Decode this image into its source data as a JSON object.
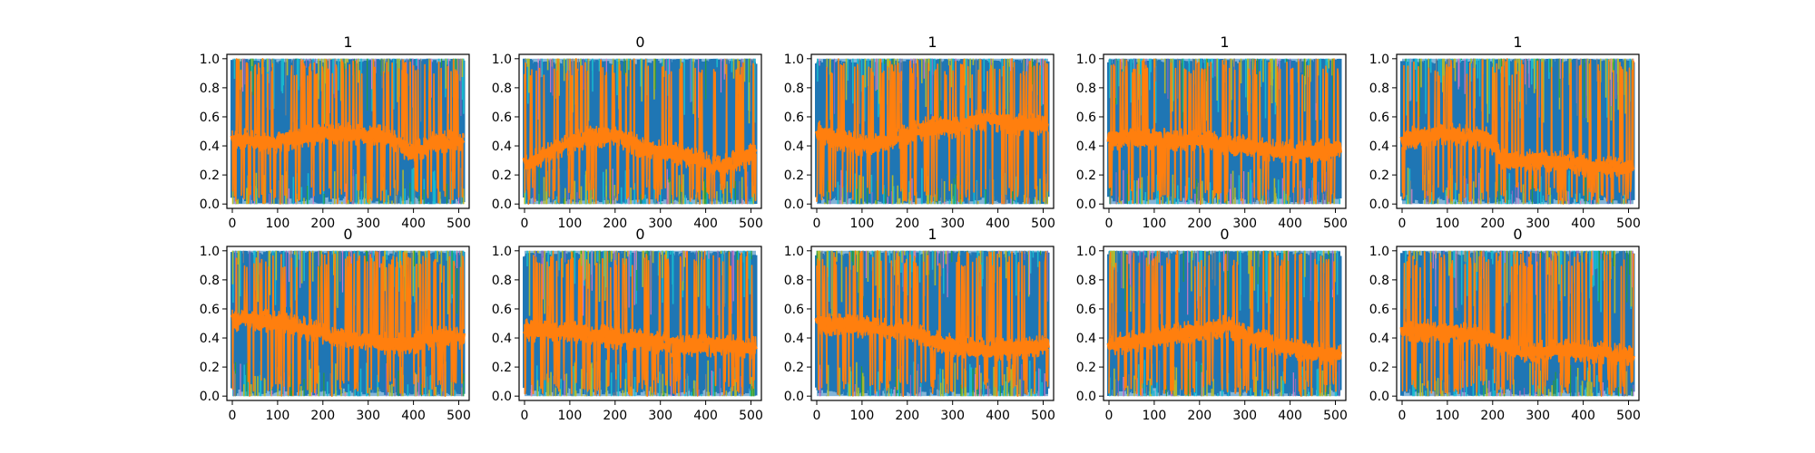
{
  "chart_data": {
    "type": "line",
    "layout": "2x5 grid of subplots",
    "xlim": [
      -12,
      523
    ],
    "ylim": [
      -0.03,
      1.03
    ],
    "xticks": [
      0,
      100,
      200,
      300,
      400,
      500
    ],
    "xtick_labels": [
      "0",
      "100",
      "200",
      "300",
      "400",
      "500"
    ],
    "yticks": [
      0.0,
      0.2,
      0.4,
      0.6,
      0.8,
      1.0
    ],
    "ytick_labels": [
      "0.0",
      "0.2",
      "0.4",
      "0.6",
      "0.8",
      "1.0"
    ],
    "grid": false,
    "legend": "none",
    "series_colors": {
      "dominant_band": "#1f77b4",
      "foreground_series": "#ff7f0e",
      "accents": [
        "#17becf",
        "#bcbd22",
        "#2ca02c",
        "#e377c2",
        "#9467bd",
        "#7f7f7f"
      ]
    },
    "subplots": [
      {
        "title": "1",
        "mid_profile": [
          [
            0,
            0.45
          ],
          [
            90,
            0.42
          ],
          [
            180,
            0.48
          ],
          [
            250,
            0.48
          ],
          [
            330,
            0.48
          ],
          [
            400,
            0.35
          ],
          [
            450,
            0.43
          ],
          [
            512,
            0.43
          ]
        ]
      },
      {
        "title": "0",
        "mid_profile": [
          [
            0,
            0.28
          ],
          [
            60,
            0.36
          ],
          [
            130,
            0.45
          ],
          [
            200,
            0.48
          ],
          [
            260,
            0.38
          ],
          [
            320,
            0.36
          ],
          [
            370,
            0.32
          ],
          [
            430,
            0.25
          ],
          [
            512,
            0.35
          ]
        ]
      },
      {
        "title": "1",
        "mid_profile": [
          [
            0,
            0.5
          ],
          [
            60,
            0.43
          ],
          [
            120,
            0.4
          ],
          [
            170,
            0.45
          ],
          [
            240,
            0.52
          ],
          [
            300,
            0.53
          ],
          [
            370,
            0.58
          ],
          [
            450,
            0.55
          ],
          [
            512,
            0.55
          ]
        ]
      },
      {
        "title": "1",
        "mid_profile": [
          [
            0,
            0.45
          ],
          [
            100,
            0.45
          ],
          [
            200,
            0.43
          ],
          [
            300,
            0.4
          ],
          [
            360,
            0.37
          ],
          [
            430,
            0.36
          ],
          [
            512,
            0.38
          ]
        ]
      },
      {
        "title": "1",
        "mid_profile": [
          [
            0,
            0.45
          ],
          [
            100,
            0.48
          ],
          [
            190,
            0.45
          ],
          [
            220,
            0.3
          ],
          [
            300,
            0.3
          ],
          [
            380,
            0.28
          ],
          [
            440,
            0.25
          ],
          [
            512,
            0.25
          ]
        ]
      },
      {
        "title": "0",
        "mid_profile": [
          [
            0,
            0.52
          ],
          [
            100,
            0.52
          ],
          [
            180,
            0.45
          ],
          [
            230,
            0.4
          ],
          [
            320,
            0.37
          ],
          [
            380,
            0.35
          ],
          [
            440,
            0.4
          ],
          [
            512,
            0.4
          ]
        ]
      },
      {
        "title": "0",
        "mid_profile": [
          [
            0,
            0.45
          ],
          [
            100,
            0.45
          ],
          [
            200,
            0.4
          ],
          [
            260,
            0.38
          ],
          [
            330,
            0.35
          ],
          [
            390,
            0.35
          ],
          [
            450,
            0.35
          ],
          [
            512,
            0.33
          ]
        ]
      },
      {
        "title": "1",
        "mid_profile": [
          [
            0,
            0.5
          ],
          [
            100,
            0.48
          ],
          [
            200,
            0.45
          ],
          [
            260,
            0.38
          ],
          [
            320,
            0.33
          ],
          [
            390,
            0.32
          ],
          [
            450,
            0.33
          ],
          [
            512,
            0.35
          ]
        ]
      },
      {
        "title": "0",
        "mid_profile": [
          [
            0,
            0.35
          ],
          [
            60,
            0.38
          ],
          [
            140,
            0.42
          ],
          [
            200,
            0.45
          ],
          [
            260,
            0.48
          ],
          [
            320,
            0.4
          ],
          [
            380,
            0.35
          ],
          [
            440,
            0.3
          ],
          [
            512,
            0.28
          ]
        ]
      },
      {
        "title": "0",
        "mid_profile": [
          [
            0,
            0.45
          ],
          [
            100,
            0.45
          ],
          [
            190,
            0.4
          ],
          [
            240,
            0.33
          ],
          [
            300,
            0.3
          ],
          [
            360,
            0.32
          ],
          [
            430,
            0.3
          ],
          [
            512,
            0.28
          ]
        ]
      }
    ]
  }
}
